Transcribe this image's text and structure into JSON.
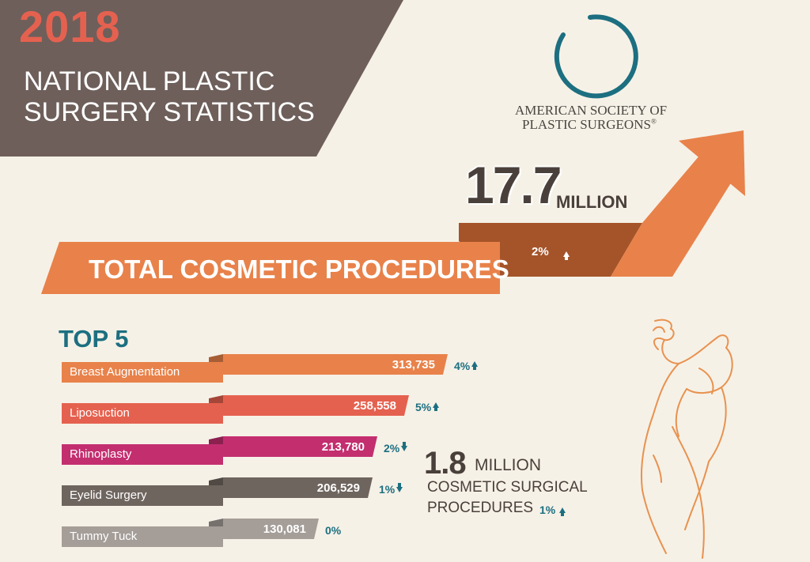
{
  "header": {
    "year": "2018",
    "title_line1": "NATIONAL PLASTIC",
    "title_line2": "SURGERY STATISTICS"
  },
  "organization": {
    "line1": "AMERICAN SOCIETY OF",
    "line2": "PLASTIC SURGEONS",
    "reg": "®",
    "logo": "circle-logo"
  },
  "total": {
    "number": "17.7",
    "unit": "MILLION",
    "label": "TOTAL COSMETIC PROCEDURES",
    "change": "2%",
    "direction": "up"
  },
  "colors": {
    "orange": "#e8824a",
    "dark_orange": "#a5542a",
    "brown": "#6e5f5b",
    "coral": "#e5614f",
    "magenta": "#c32e6f",
    "gray_brown": "#6f655f",
    "light_gray": "#a49d98",
    "teal": "#1c6f80"
  },
  "chart_data": {
    "type": "bar",
    "title": "TOP 5",
    "categories": [
      "Breast Augmentation",
      "Liposuction",
      "Rhinoplasty",
      "Eyelid Surgery",
      "Tummy Tuck"
    ],
    "values": [
      313735,
      258558,
      213780,
      206529,
      130081
    ],
    "value_labels": [
      "313,735",
      "258,558",
      "213,780",
      "206,529",
      "130,081"
    ],
    "changes": [
      "4%",
      "5%",
      "2%",
      "1%",
      "0%"
    ],
    "directions": [
      "up",
      "up",
      "down",
      "down",
      "none"
    ],
    "colors": [
      "#e8824a",
      "#e5614f",
      "#c32e6f",
      "#6f655f",
      "#a49d98"
    ]
  },
  "surgical": {
    "number": "1.8",
    "unit": "MILLION",
    "line2": "COSMETIC SURGICAL",
    "line3": "PROCEDURES",
    "change": "1%",
    "direction": "up"
  },
  "decoration": {
    "figure": "body-outline-illustration"
  }
}
